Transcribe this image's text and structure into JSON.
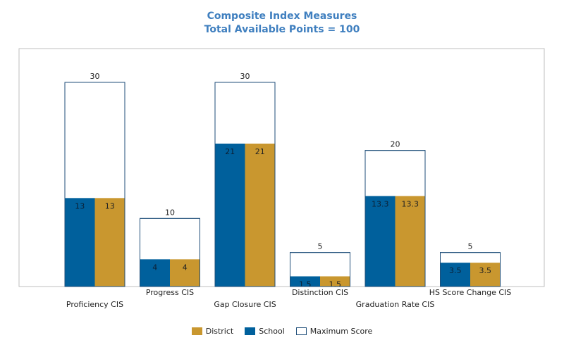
{
  "chart_data": {
    "type": "bar",
    "title": "Composite Index Measures",
    "subtitle": "Total Available Points = 100",
    "categories": [
      "Proficiency CIS",
      "Progress CIS",
      "Gap Closure CIS",
      "Distinction CIS",
      "Graduation Rate CIS",
      "HS Score Change CIS"
    ],
    "series": [
      {
        "name": "Maximum Score",
        "values": [
          30,
          10,
          30,
          5,
          20,
          5
        ],
        "value_labels": [
          "30",
          "10",
          "30",
          "5",
          "20",
          "5"
        ],
        "color": "#ffffff",
        "stroke": "#1f4e79"
      },
      {
        "name": "School",
        "values": [
          13,
          4,
          21,
          1.5,
          13.3,
          3.5
        ],
        "value_labels": [
          "13",
          "4",
          "21",
          "1.5",
          "13.3",
          "3.5"
        ],
        "color": "#00609c"
      },
      {
        "name": "District",
        "values": [
          13,
          4,
          21,
          1.5,
          13.3,
          3.5
        ],
        "value_labels": [
          "13",
          "4",
          "21",
          "1.5",
          "13.3",
          "3.5"
        ],
        "color": "#c9972f"
      }
    ],
    "legend": [
      "District",
      "School",
      "Maximum Score"
    ],
    "legend_position": "bottom",
    "ylim": [
      0,
      36
    ],
    "grid": false,
    "xlabel": "",
    "ylabel": ""
  }
}
